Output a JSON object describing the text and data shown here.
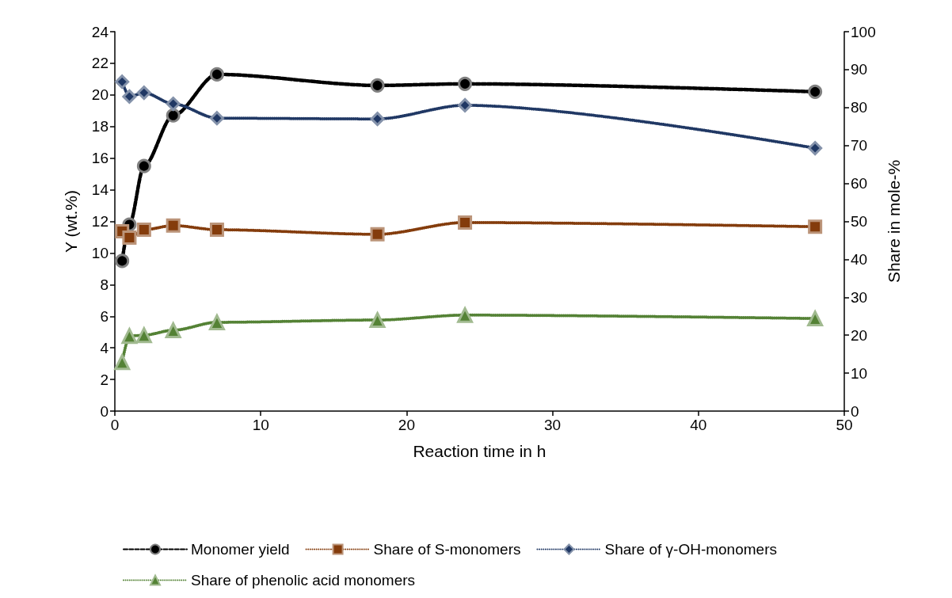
{
  "chart_data": {
    "type": "line",
    "xlabel": "Reaction time in h",
    "ylabel": "Y (wt.%)",
    "y2label": "Share in mole-%",
    "xlim": [
      0,
      50
    ],
    "xticks": [
      0,
      10,
      20,
      30,
      40,
      50
    ],
    "ylim": [
      0,
      24
    ],
    "yticks": [
      0,
      2,
      4,
      6,
      8,
      10,
      12,
      14,
      16,
      18,
      20,
      22,
      24
    ],
    "y2lim": [
      0,
      100
    ],
    "y2ticks": [
      0,
      10,
      20,
      30,
      40,
      50,
      60,
      70,
      80,
      90,
      100
    ],
    "x": [
      0.5,
      1,
      2,
      4,
      7,
      18,
      24,
      48
    ],
    "series": [
      {
        "name": "Monomer yield",
        "color": "#000000",
        "marker": "circle",
        "line_style": "dashed",
        "values": [
          9.5,
          11.8,
          15.5,
          18.7,
          21.3,
          20.6,
          20.7,
          20.2
        ]
      },
      {
        "name": "Share of S-monomers",
        "color": "#843c0c",
        "marker": "square",
        "line_style": "dotted",
        "axis": "y2",
        "values": [
          47.4,
          45.7,
          47.8,
          48.9,
          47.8,
          46.6,
          49.7,
          48.6
        ]
      },
      {
        "name": "Share of γ-OH-monomers",
        "color": "#203864",
        "marker": "diamond",
        "line_style": "dotted",
        "axis": "y2",
        "values": [
          86.8,
          82.9,
          83.9,
          81,
          77.2,
          77,
          80.6,
          69.3
        ]
      },
      {
        "name": "Share of phenolic acid monomers",
        "color": "#548235",
        "marker": "triangle",
        "line_style": "dotted",
        "axis": "y2",
        "values": [
          12.9,
          19.8,
          20,
          21.3,
          23.4,
          24,
          25.3,
          24.4
        ]
      }
    ],
    "grid": false,
    "legend": "bottom"
  }
}
